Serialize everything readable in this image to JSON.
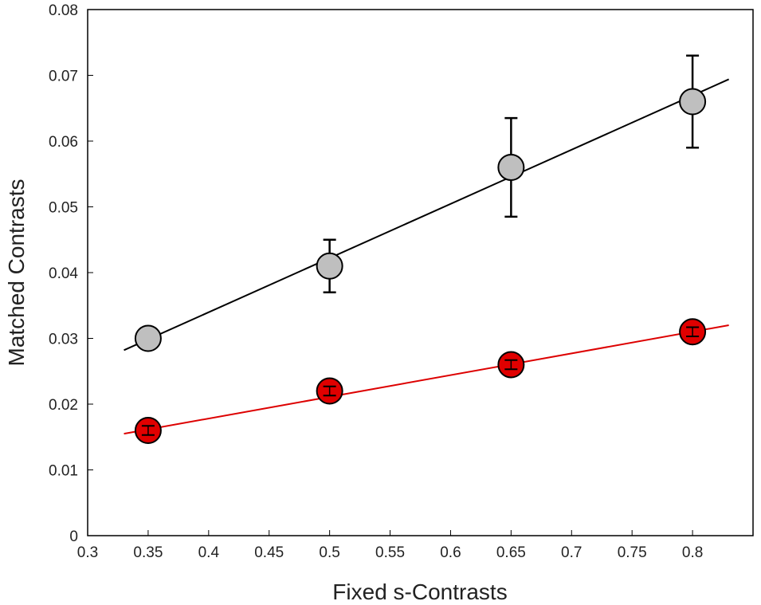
{
  "chart_data": {
    "type": "scatter",
    "title": "",
    "xlabel": "Fixed s-Contrasts",
    "ylabel": "Matched Contrasts",
    "xlim": [
      0.3,
      0.85
    ],
    "ylim": [
      0,
      0.08
    ],
    "xticks": [
      0.3,
      0.35,
      0.4,
      0.45,
      0.5,
      0.55,
      0.6,
      0.65,
      0.7,
      0.75,
      0.8
    ],
    "xtick_labels": [
      "0.3",
      "0.35",
      "0.4",
      "0.45",
      "0.5",
      "0.55",
      "0.6",
      "0.65",
      "0.7",
      "0.75",
      "0.8"
    ],
    "yticks": [
      0,
      0.01,
      0.02,
      0.03,
      0.04,
      0.05,
      0.06,
      0.07,
      0.08
    ],
    "ytick_labels": [
      "0",
      "0.01",
      "0.02",
      "0.03",
      "0.04",
      "0.05",
      "0.06",
      "0.07",
      "0.08"
    ],
    "grid": false,
    "legend": "none",
    "series": [
      {
        "color": "#000000",
        "marker_fill": "#bfbfbf",
        "x": [
          0.35,
          0.5,
          0.65,
          0.8
        ],
        "y": [
          0.03,
          0.041,
          0.056,
          0.066
        ],
        "err_low": [
          0.0,
          0.004,
          0.0075,
          0.007
        ],
        "err_high": [
          0.0,
          0.004,
          0.0075,
          0.007
        ],
        "fit": {
          "x": [
            0.33,
            0.83
          ],
          "y": [
            0.0282,
            0.0694
          ]
        }
      },
      {
        "color": "#dd0000",
        "marker_fill": "#e00000",
        "x": [
          0.35,
          0.5,
          0.65,
          0.8
        ],
        "y": [
          0.016,
          0.022,
          0.026,
          0.031
        ],
        "err_low": [
          0.0007,
          0.0007,
          0.0007,
          0.0007
        ],
        "err_high": [
          0.0007,
          0.0007,
          0.0007,
          0.0007
        ],
        "fit": {
          "x": [
            0.33,
            0.83
          ],
          "y": [
            0.0155,
            0.032
          ]
        }
      }
    ]
  }
}
